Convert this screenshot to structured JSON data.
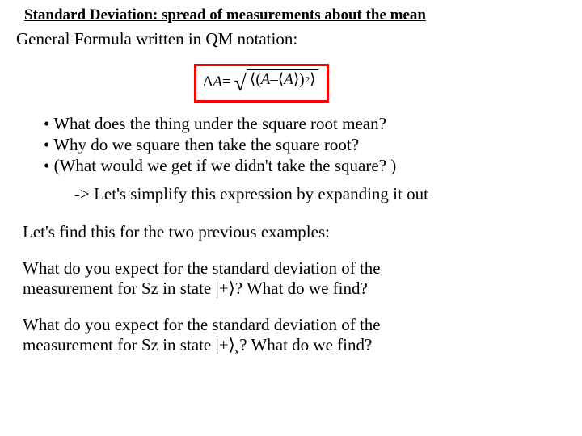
{
  "title": "Standard Deviation: spread of measurements about the mean",
  "subtitle": "General Formula written in QM notation:",
  "formula": {
    "lhs": "Δ",
    "A": "A",
    "eq": " = ",
    "lang": "⟨",
    "rang": "⟩",
    "minus": " – ",
    "lparen": "(",
    "rparen": ")",
    "sup": "2",
    "border_color": "#ff0000"
  },
  "bullets": {
    "b1": "• What does the thing under the square root mean?",
    "b2": "• Why do we square then take the square root?",
    "b3": "• (What would we get if we didn't take the square? )"
  },
  "arrow_line": "-> Let's simplify this expression by expanding it out",
  "para_intro": "Let's find this for the two previous examples:",
  "q1_a": "What do you expect for the standard deviation of the",
  "q1_b_pre": "measurement for Sz in state |+",
  "q1_b_post": "?  What do we find?",
  "q2_a": "What do you expect for the standard deviation of the",
  "q2_b_pre": "measurement for Sz in state |+",
  "q2_b_sub": "x",
  "q2_b_post": "?  What do we find?",
  "font": {
    "title_size": 19,
    "body_size": 21,
    "formula_size": 19,
    "radical_size": 28
  },
  "colors": {
    "text": "#000000",
    "background": "#ffffff"
  }
}
